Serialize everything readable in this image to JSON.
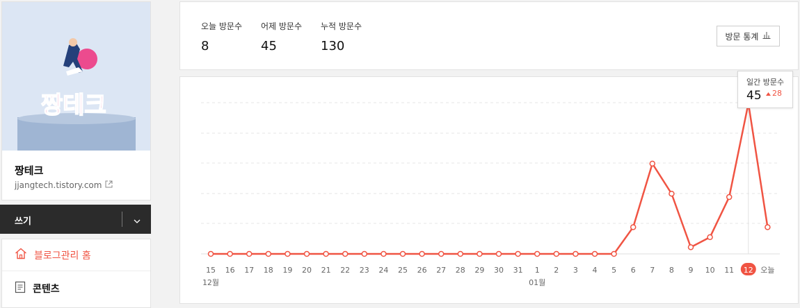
{
  "blog": {
    "name": "짱테크",
    "url": "jjangtech.tistory.com",
    "logo_text": "짱테크"
  },
  "write": {
    "label": "쓰기"
  },
  "menu": {
    "home_label": "블로그관리 홈",
    "content_label": "콘텐츠"
  },
  "stats": {
    "today_label": "오늘 방문수",
    "today_value": "8",
    "yesterday_label": "어제 방문수",
    "yesterday_value": "45",
    "total_label": "누적 방문수",
    "total_value": "130",
    "button_label": "방문 통계"
  },
  "tooltip": {
    "label": "일간 방문수",
    "value": "45",
    "change": "28"
  },
  "colors": {
    "accent": "#f05443"
  },
  "chart_data": {
    "type": "line",
    "x": [
      "15",
      "16",
      "17",
      "18",
      "19",
      "20",
      "21",
      "22",
      "23",
      "24",
      "25",
      "26",
      "27",
      "28",
      "29",
      "30",
      "31",
      "1",
      "2",
      "3",
      "4",
      "5",
      "6",
      "7",
      "8",
      "9",
      "10",
      "11",
      "12",
      "오늘"
    ],
    "month_labels": [
      {
        "at": "15",
        "label": "12월"
      },
      {
        "at": "1",
        "label": "01월"
      }
    ],
    "series": [
      {
        "values": [
          0,
          0,
          0,
          0,
          0,
          0,
          0,
          0,
          0,
          0,
          0,
          0,
          0,
          0,
          0,
          0,
          0,
          0,
          0,
          0,
          0,
          0,
          8,
          27,
          18,
          2,
          5,
          17,
          45,
          8
        ]
      }
    ],
    "highlight_index": 28,
    "ylim": [
      0,
      50
    ],
    "grid": true
  }
}
